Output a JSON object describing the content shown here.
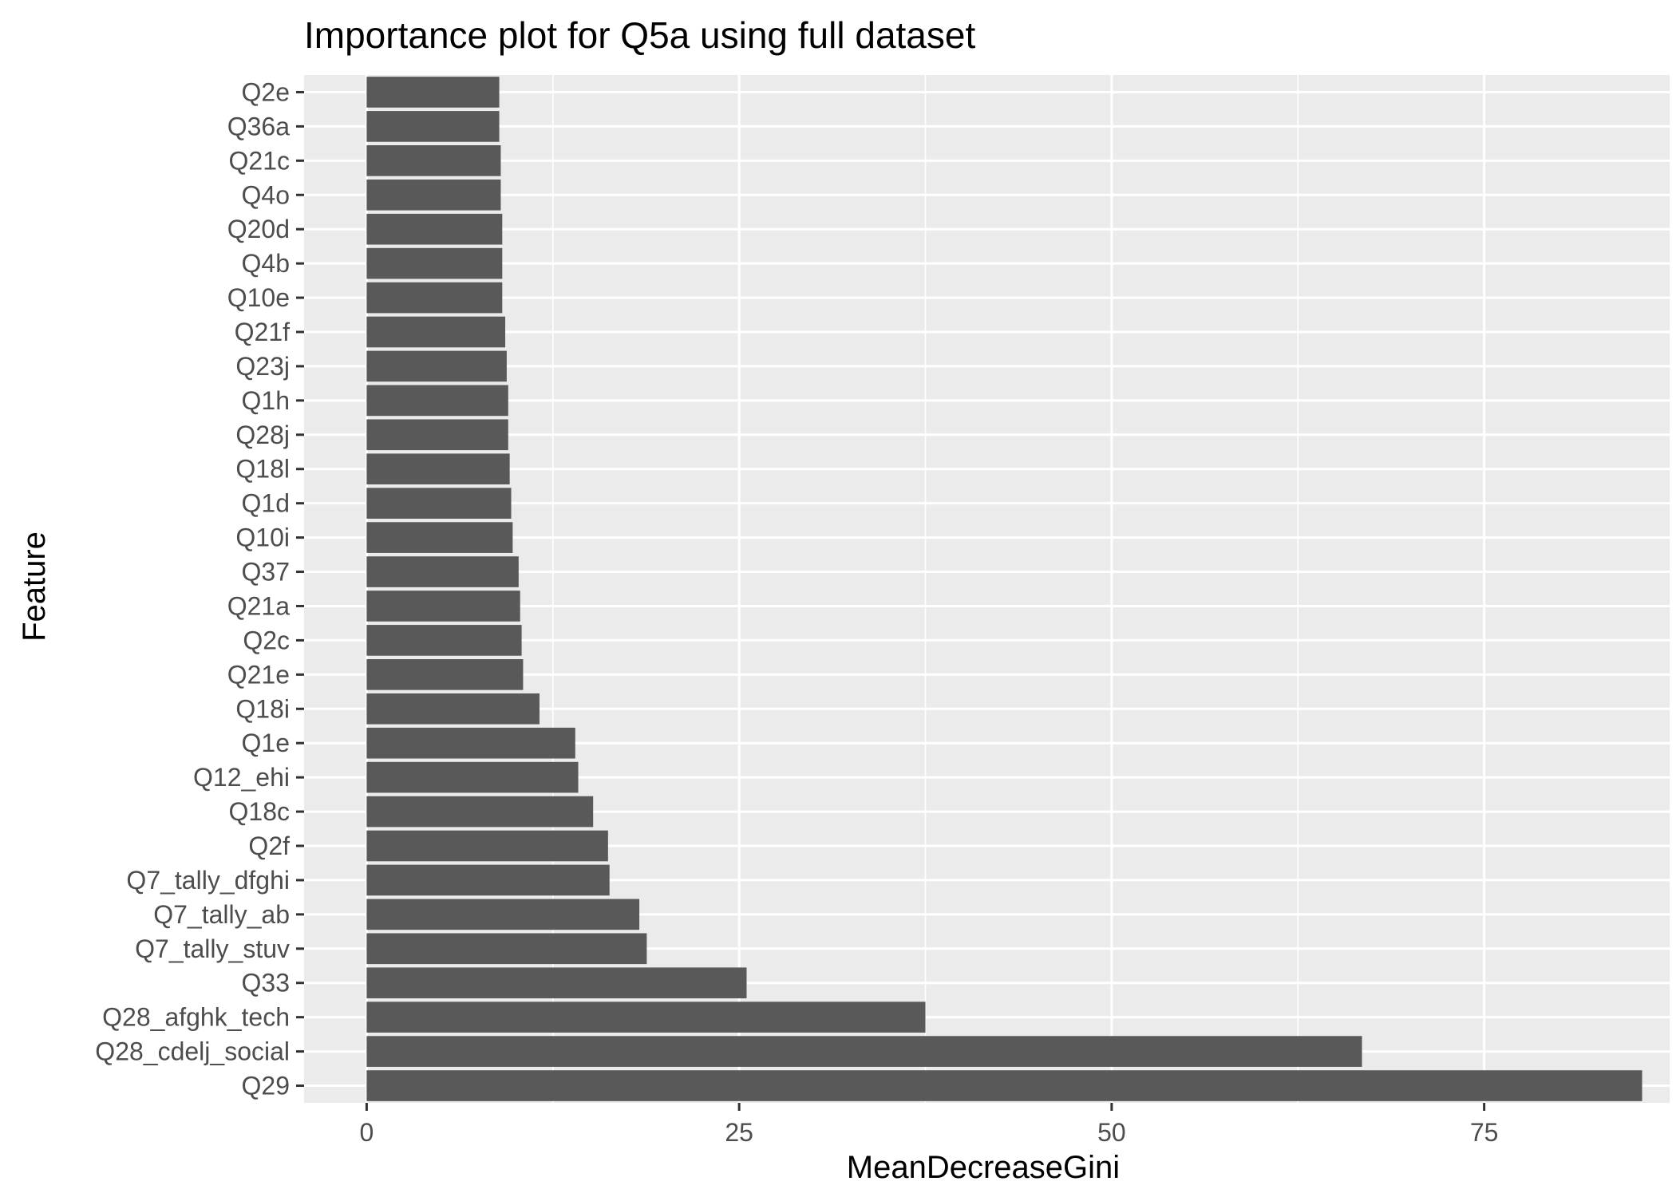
{
  "chart_data": {
    "type": "bar",
    "orientation": "horizontal",
    "title": "Importance plot for Q5a using full dataset",
    "xlabel": "MeanDecreaseGini",
    "ylabel": "Feature",
    "xlim": [
      -4.2,
      87.5
    ],
    "x_ticks": [
      0,
      25,
      50,
      75
    ],
    "x_tick_labels": [
      "0",
      "25",
      "50",
      "75"
    ],
    "grid": true,
    "legend": "none",
    "categories": [
      "Q2e",
      "Q36a",
      "Q21c",
      "Q4o",
      "Q20d",
      "Q4b",
      "Q10e",
      "Q21f",
      "Q23j",
      "Q1h",
      "Q28j",
      "Q18l",
      "Q1d",
      "Q10i",
      "Q37",
      "Q21a",
      "Q2c",
      "Q21e",
      "Q18i",
      "Q1e",
      "Q12_ehi",
      "Q18c",
      "Q2f",
      "Q7_tally_dfghi",
      "Q7_tally_ab",
      "Q7_tally_stuv",
      "Q33",
      "Q28_afghk_tech",
      "Q28_cdelj_social",
      "Q29"
    ],
    "values": [
      8.9,
      8.9,
      9.0,
      9.0,
      9.1,
      9.1,
      9.1,
      9.3,
      9.4,
      9.5,
      9.5,
      9.6,
      9.7,
      9.8,
      10.2,
      10.3,
      10.4,
      10.5,
      11.6,
      14.0,
      14.2,
      15.2,
      16.2,
      16.3,
      18.3,
      18.8,
      25.5,
      37.5,
      66.8,
      85.6
    ]
  },
  "colors": {
    "bar": "#595959",
    "panel_background": "#ebebeb",
    "gridline": "#ffffff",
    "tick_text": "#4d4d4d",
    "text": "#000000"
  }
}
